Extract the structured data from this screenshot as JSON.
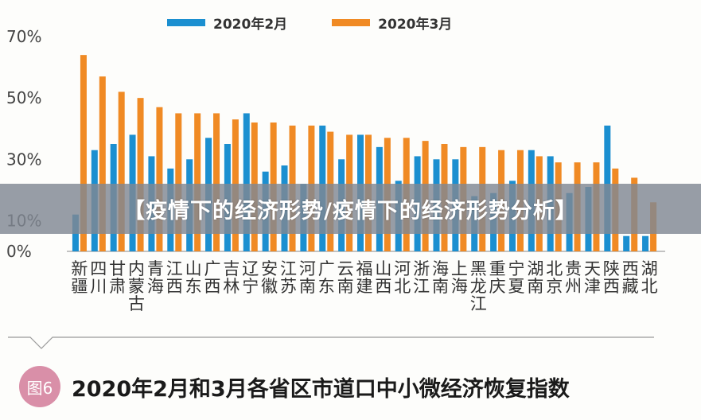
{
  "banner": {
    "text": "【疫情下的经济形势/疫情下的经济形势分析】"
  },
  "caption": {
    "badge": "图6",
    "text": "2020年2月和3月各省区市道口中小微经济恢复指数"
  },
  "colors": {
    "series_feb": "#1b8fd0",
    "series_mar": "#f08a24",
    "badge": "#d98fa8"
  },
  "chart_data": {
    "type": "bar",
    "categories": [
      "新疆",
      "四川",
      "甘肃",
      "内蒙古",
      "青海",
      "江西",
      "山东",
      "广西",
      "吉林",
      "辽宁",
      "安徽",
      "江苏",
      "河南",
      "广东",
      "云南",
      "福建",
      "山西",
      "河北",
      "浙江",
      "海南",
      "上海",
      "黑龙江",
      "重庆",
      "宁夏",
      "湖南",
      "北京",
      "贵州",
      "天津",
      "陕西",
      "西藏",
      "湖北"
    ],
    "series": [
      {
        "name": "2020年2月",
        "values": [
          12,
          33,
          35,
          38,
          31,
          27,
          30,
          37,
          35,
          45,
          26,
          28,
          22,
          41,
          30,
          38,
          34,
          23,
          31,
          30,
          30,
          18,
          19,
          23,
          33,
          31,
          19,
          21,
          41,
          5,
          5
        ]
      },
      {
        "name": "2020年3月",
        "values": [
          64,
          57,
          52,
          50,
          47,
          45,
          45,
          45,
          43,
          42,
          42,
          41,
          41,
          39,
          38,
          38,
          37,
          37,
          36,
          35,
          34,
          34,
          33,
          33,
          31,
          29,
          29,
          29,
          27,
          24,
          16
        ]
      }
    ],
    "ylim": [
      0,
      70
    ],
    "yticks": [
      "0%",
      "10%",
      "30%",
      "50%",
      "70%"
    ],
    "ytick_values": [
      0,
      10,
      30,
      50,
      70
    ],
    "legend": "top",
    "grid": false
  }
}
